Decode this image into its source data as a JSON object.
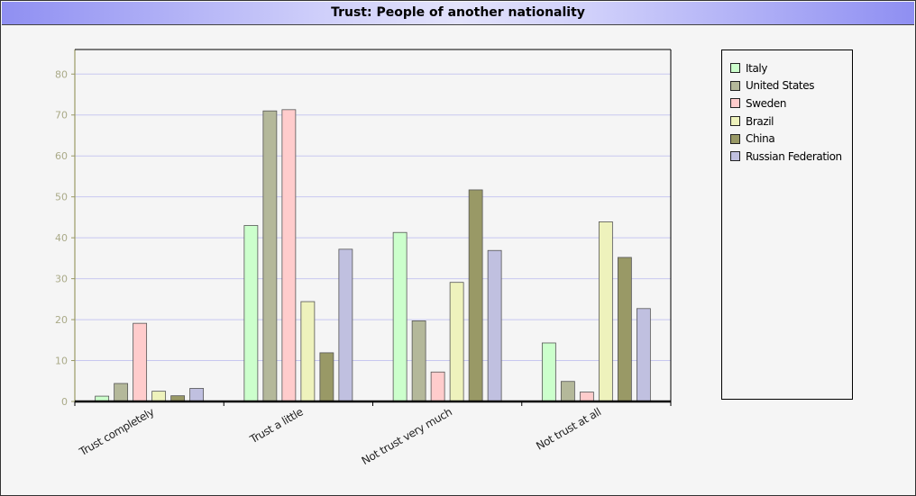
{
  "chart_data": {
    "type": "bar",
    "title": "Trust: People of another nationality",
    "xlabel": "",
    "ylabel": "",
    "categories": [
      "Trust completely",
      "Trust a little",
      "Not trust very much",
      "Not trust at all"
    ],
    "ylim": [
      0,
      86
    ],
    "yticks": [
      0,
      10,
      20,
      30,
      40,
      50,
      60,
      70,
      80
    ],
    "grid": true,
    "legend_position": "right",
    "series": [
      {
        "name": "Italy",
        "color": "#ccffcc",
        "values": [
          1.3,
          43.0,
          41.3,
          14.3
        ]
      },
      {
        "name": "United States",
        "color": "#b4b89a",
        "values": [
          4.4,
          71.0,
          19.7,
          4.9
        ]
      },
      {
        "name": "Sweden",
        "color": "#ffcccc",
        "values": [
          19.1,
          71.3,
          7.2,
          2.3
        ]
      },
      {
        "name": "Brazil",
        "color": "#eef2bc",
        "values": [
          2.5,
          24.4,
          29.1,
          43.9
        ]
      },
      {
        "name": "China",
        "color": "#999966",
        "values": [
          1.4,
          11.9,
          51.7,
          35.2
        ]
      },
      {
        "name": "Russian Federation",
        "color": "#c0c0e0",
        "values": [
          3.2,
          37.2,
          36.9,
          22.7
        ]
      }
    ]
  }
}
